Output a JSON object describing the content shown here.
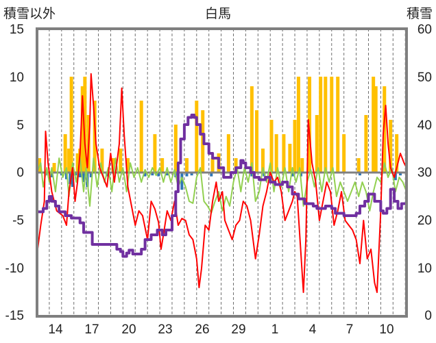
{
  "chart_data": {
    "type": "bar+line",
    "title": "白馬",
    "ylabel_left": "積雪以外",
    "ylabel_right": "積雪",
    "ylim_left": [
      -15,
      15
    ],
    "ylim_right": [
      0,
      60
    ],
    "yticks_left": [
      "15",
      "10",
      "5",
      "0",
      "-5",
      "-10",
      "-15"
    ],
    "yticks_right": [
      "60",
      "50",
      "40",
      "30",
      "20",
      "10",
      "0"
    ],
    "x_tick_labels": [
      "14",
      "17",
      "20",
      "23",
      "26",
      "29",
      "1",
      "4",
      "7",
      "10"
    ],
    "x_tick_positions_days": [
      1,
      4,
      7,
      10,
      13,
      16,
      19,
      22,
      25,
      28
    ],
    "x_range_days": [
      0,
      30.1
    ],
    "colors": {
      "snowfall": "#ffc000",
      "precip": "#2e75b6",
      "temperature": "#ff0000",
      "temp_change": "#92d050",
      "snow_depth": "#7030a0",
      "frame": "#7f7f7f",
      "zero_line": "#808080"
    },
    "series_temperature_left": [
      [
        0,
        -8.5
      ],
      [
        0.3,
        -5.5
      ],
      [
        0.6,
        -3
      ],
      [
        0.7,
        4.3
      ],
      [
        0.9,
        1
      ],
      [
        1.2,
        -2
      ],
      [
        1.6,
        -4
      ],
      [
        2.1,
        -4.5
      ],
      [
        2.4,
        -5.5
      ],
      [
        2.6,
        -2
      ],
      [
        2.9,
        0.5
      ],
      [
        3.1,
        -3
      ],
      [
        3.3,
        -1
      ],
      [
        3.5,
        2
      ],
      [
        3.7,
        8
      ],
      [
        3.9,
        3
      ],
      [
        4.1,
        0.5
      ],
      [
        4.3,
        5
      ],
      [
        4.4,
        10.3
      ],
      [
        4.6,
        7
      ],
      [
        4.8,
        3
      ],
      [
        5.1,
        0.5
      ],
      [
        5.4,
        -0.5
      ],
      [
        5.7,
        -1.5
      ],
      [
        6,
        2
      ],
      [
        6.3,
        -1
      ],
      [
        6.7,
        3
      ],
      [
        6.9,
        8.8
      ],
      [
        7.1,
        4
      ],
      [
        7.4,
        -1.5
      ],
      [
        7.7,
        -3.5
      ],
      [
        8,
        -5.5
      ],
      [
        8.3,
        -4
      ],
      [
        8.6,
        -4.5
      ],
      [
        9,
        -7
      ],
      [
        9.3,
        -3
      ],
      [
        9.6,
        -3.8
      ],
      [
        9.9,
        -5.2
      ],
      [
        10.1,
        -8
      ],
      [
        10.3,
        -6.5
      ],
      [
        10.6,
        -4
      ],
      [
        10.9,
        -5
      ],
      [
        11.2,
        -3
      ],
      [
        11.5,
        -5.5
      ],
      [
        11.8,
        -4.8
      ],
      [
        12.1,
        -5
      ],
      [
        12.4,
        -6.5
      ],
      [
        12.7,
        -7
      ],
      [
        13,
        -9
      ],
      [
        13.2,
        -12
      ],
      [
        13.4,
        -10
      ],
      [
        13.7,
        -5.5
      ],
      [
        14,
        -6
      ],
      [
        14.3,
        -3
      ],
      [
        14.6,
        -1
      ],
      [
        14.8,
        -3
      ],
      [
        15.1,
        -2
      ],
      [
        15.3,
        -5
      ],
      [
        15.6,
        -6
      ],
      [
        15.9,
        -7
      ],
      [
        16.2,
        -5.5
      ],
      [
        16.5,
        -5
      ],
      [
        16.8,
        -3
      ],
      [
        17.1,
        -3.5
      ],
      [
        17.4,
        -5
      ],
      [
        17.8,
        -9
      ],
      [
        18.1,
        -6.5
      ],
      [
        18.4,
        -3.5
      ],
      [
        18.7,
        -2
      ],
      [
        19,
        0
      ],
      [
        19.3,
        -1
      ],
      [
        19.6,
        -0.5
      ],
      [
        19.9,
        -2
      ],
      [
        20.2,
        -5
      ],
      [
        20.5,
        -4
      ],
      [
        20.8,
        -3
      ],
      [
        21,
        -2
      ],
      [
        21.2,
        -2.5
      ],
      [
        21.5,
        -8.5
      ],
      [
        21.7,
        -12.5
      ],
      [
        21.9,
        -7
      ],
      [
        22.1,
        5.5
      ],
      [
        22.4,
        1
      ],
      [
        22.7,
        -1
      ],
      [
        23,
        -5
      ],
      [
        23.3,
        -3
      ],
      [
        23.6,
        -1
      ],
      [
        23.9,
        -2
      ],
      [
        24.2,
        -5.5
      ],
      [
        24.5,
        -4
      ],
      [
        24.8,
        -2
      ],
      [
        25.1,
        -5
      ],
      [
        25.4,
        -5.5
      ],
      [
        25.7,
        -6
      ],
      [
        26,
        -7
      ],
      [
        26.3,
        -9.5
      ],
      [
        26.6,
        -5
      ],
      [
        26.9,
        -9
      ],
      [
        27.2,
        -8
      ],
      [
        27.5,
        -11.5
      ],
      [
        27.7,
        -12.5
      ],
      [
        28,
        -4
      ],
      [
        28.2,
        4
      ],
      [
        28.4,
        7
      ],
      [
        28.6,
        3
      ],
      [
        28.8,
        0.5
      ],
      [
        29.1,
        -0.5
      ],
      [
        29.4,
        1
      ],
      [
        29.6,
        2
      ],
      [
        29.9,
        1
      ],
      [
        30.1,
        0.5
      ]
    ],
    "series_temp_change_left": [
      [
        0,
        0
      ],
      [
        0.3,
        1
      ],
      [
        0.5,
        -1.5
      ],
      [
        0.8,
        0.5
      ],
      [
        1,
        -1
      ],
      [
        1.2,
        0.5
      ],
      [
        1.5,
        -2
      ],
      [
        1.8,
        1.5
      ],
      [
        2.1,
        -0.5
      ],
      [
        2.4,
        0.5
      ],
      [
        2.6,
        -2.5
      ],
      [
        2.9,
        1
      ],
      [
        3.2,
        -1
      ],
      [
        3.5,
        1.5
      ],
      [
        3.8,
        -2
      ],
      [
        4,
        0.5
      ],
      [
        4.3,
        -3.5
      ],
      [
        4.6,
        1.5
      ],
      [
        4.9,
        -1.5
      ],
      [
        5.2,
        1
      ],
      [
        5.5,
        -1
      ],
      [
        5.8,
        0.5
      ],
      [
        6.1,
        -2
      ],
      [
        6.4,
        1.5
      ],
      [
        6.7,
        -1
      ],
      [
        7,
        0.5
      ],
      [
        7.3,
        -2
      ],
      [
        7.6,
        1
      ],
      [
        7.9,
        -0.5
      ],
      [
        8.2,
        0.5
      ],
      [
        8.5,
        -1
      ],
      [
        8.8,
        0.3
      ],
      [
        9.1,
        -0.5
      ],
      [
        9.4,
        0.5
      ],
      [
        9.7,
        -0.3
      ],
      [
        10,
        0.5
      ],
      [
        10.3,
        -1
      ],
      [
        10.6,
        0.5
      ],
      [
        10.9,
        -1
      ],
      [
        11.2,
        0.3
      ],
      [
        11.5,
        -1.5
      ],
      [
        11.8,
        -0.5
      ],
      [
        12.1,
        -1.5
      ],
      [
        12.4,
        -3
      ],
      [
        12.7,
        -3.2
      ],
      [
        13,
        -0.5
      ],
      [
        13.3,
        0.5
      ],
      [
        13.6,
        -3
      ],
      [
        13.9,
        -3.5
      ],
      [
        14.2,
        -4.2
      ],
      [
        14.5,
        -3
      ],
      [
        14.8,
        -2
      ],
      [
        15.1,
        -4
      ],
      [
        15.4,
        -2.5
      ],
      [
        15.7,
        -3.5
      ],
      [
        16,
        -1
      ],
      [
        16.3,
        0.5
      ],
      [
        16.6,
        -2
      ],
      [
        16.9,
        0.5
      ],
      [
        17.2,
        -1
      ],
      [
        17.5,
        1
      ],
      [
        17.8,
        -3
      ],
      [
        18.1,
        -2
      ],
      [
        18.4,
        0.5
      ],
      [
        18.7,
        -1
      ],
      [
        19,
        1
      ],
      [
        19.3,
        -2
      ],
      [
        19.6,
        0.5
      ],
      [
        19.9,
        -1.5
      ],
      [
        20.2,
        0.5
      ],
      [
        20.5,
        -2
      ],
      [
        20.8,
        0.5
      ],
      [
        21.1,
        -1
      ],
      [
        21.4,
        0.5
      ],
      [
        21.7,
        -3.5
      ],
      [
        22,
        -1
      ],
      [
        22.3,
        0.3
      ],
      [
        22.6,
        -1.5
      ],
      [
        22.9,
        0.5
      ],
      [
        23.2,
        -2
      ],
      [
        23.5,
        0.5
      ],
      [
        23.8,
        -1
      ],
      [
        24.1,
        0.5
      ],
      [
        24.4,
        -2.5
      ],
      [
        24.7,
        -1
      ],
      [
        25,
        -2
      ],
      [
        25.3,
        -3
      ],
      [
        25.6,
        -2
      ],
      [
        25.9,
        -1
      ],
      [
        26.2,
        -2.5
      ],
      [
        26.5,
        -1
      ],
      [
        26.8,
        -2
      ],
      [
        27.1,
        -4
      ],
      [
        27.4,
        -2
      ],
      [
        27.7,
        -0.5
      ],
      [
        28,
        -1
      ],
      [
        28.3,
        1
      ],
      [
        28.6,
        -0.5
      ],
      [
        28.9,
        0.5
      ],
      [
        29.2,
        -2
      ],
      [
        29.5,
        -0.5
      ],
      [
        29.8,
        -1
      ],
      [
        30.1,
        -2
      ]
    ],
    "series_snow_depth_right": [
      [
        0,
        21.8
      ],
      [
        0.5,
        21.8
      ],
      [
        0.5,
        22.5
      ],
      [
        0.8,
        22.5
      ],
      [
        0.8,
        24
      ],
      [
        1,
        24
      ],
      [
        1,
        25
      ],
      [
        1.2,
        25
      ],
      [
        1.2,
        24
      ],
      [
        1.5,
        24
      ],
      [
        1.5,
        23
      ],
      [
        1.8,
        23
      ],
      [
        1.8,
        21.8
      ],
      [
        2.3,
        21.8
      ],
      [
        2.3,
        21
      ],
      [
        2.8,
        21
      ],
      [
        2.8,
        20.5
      ],
      [
        3.5,
        20.5
      ],
      [
        3.5,
        19.5
      ],
      [
        3.8,
        19.5
      ],
      [
        3.8,
        17.5
      ],
      [
        4.5,
        17.5
      ],
      [
        4.5,
        15
      ],
      [
        6.5,
        15
      ],
      [
        6.5,
        14
      ],
      [
        6.8,
        14
      ],
      [
        6.8,
        13.5
      ],
      [
        7,
        13.5
      ],
      [
        7,
        12.5
      ],
      [
        7.3,
        12.5
      ],
      [
        7.3,
        13.2
      ],
      [
        7.5,
        13.2
      ],
      [
        7.5,
        13.8
      ],
      [
        7.8,
        13.8
      ],
      [
        7.8,
        13
      ],
      [
        8.5,
        13
      ],
      [
        8.5,
        14
      ],
      [
        8.8,
        14
      ],
      [
        8.8,
        16
      ],
      [
        9.3,
        16
      ],
      [
        9.3,
        17
      ],
      [
        9.8,
        17
      ],
      [
        9.8,
        18
      ],
      [
        10.2,
        18
      ],
      [
        10.2,
        17
      ],
      [
        10.5,
        17
      ],
      [
        10.5,
        18
      ],
      [
        11,
        18
      ],
      [
        11,
        21
      ],
      [
        11.3,
        21
      ],
      [
        11.3,
        26
      ],
      [
        11.5,
        26
      ],
      [
        11.5,
        32
      ],
      [
        11.7,
        32
      ],
      [
        11.7,
        37
      ],
      [
        12,
        37
      ],
      [
        12,
        40
      ],
      [
        12.3,
        40
      ],
      [
        12.3,
        41.5
      ],
      [
        12.6,
        41.5
      ],
      [
        12.6,
        42
      ],
      [
        12.8,
        42
      ],
      [
        12.8,
        41.5
      ],
      [
        13,
        41.5
      ],
      [
        13,
        40
      ],
      [
        13.3,
        40
      ],
      [
        13.3,
        38
      ],
      [
        13.6,
        38
      ],
      [
        13.6,
        36
      ],
      [
        14,
        36
      ],
      [
        14,
        34
      ],
      [
        14.3,
        34
      ],
      [
        14.3,
        33
      ],
      [
        14.8,
        33
      ],
      [
        14.8,
        31
      ],
      [
        15.2,
        31
      ],
      [
        15.2,
        29
      ],
      [
        15.8,
        29
      ],
      [
        15.8,
        30
      ],
      [
        16.2,
        30
      ],
      [
        16.2,
        31
      ],
      [
        16.6,
        31
      ],
      [
        16.6,
        32.5
      ],
      [
        16.8,
        32.5
      ],
      [
        16.8,
        32
      ],
      [
        17,
        32
      ],
      [
        17,
        31
      ],
      [
        17.4,
        31
      ],
      [
        17.4,
        30
      ],
      [
        17.7,
        30
      ],
      [
        17.7,
        29
      ],
      [
        18.1,
        29
      ],
      [
        18.1,
        28.5
      ],
      [
        18.6,
        28.5
      ],
      [
        18.6,
        29
      ],
      [
        19,
        29
      ],
      [
        19,
        28
      ],
      [
        19.4,
        28
      ],
      [
        19.4,
        27.5
      ],
      [
        20,
        27.5
      ],
      [
        20,
        28
      ],
      [
        20.4,
        28
      ],
      [
        20.4,
        27
      ],
      [
        20.8,
        27
      ],
      [
        20.8,
        25.5
      ],
      [
        21.3,
        25.5
      ],
      [
        21.3,
        24.5
      ],
      [
        21.8,
        24.5
      ],
      [
        21.8,
        23.5
      ],
      [
        22.5,
        23.5
      ],
      [
        22.5,
        23
      ],
      [
        22.8,
        23
      ],
      [
        22.8,
        22.5
      ],
      [
        23.5,
        22.5
      ],
      [
        23.5,
        23
      ],
      [
        24,
        23
      ],
      [
        24,
        22.5
      ],
      [
        24.3,
        22.5
      ],
      [
        24.3,
        21.5
      ],
      [
        25,
        21.5
      ],
      [
        25,
        21
      ],
      [
        26,
        21
      ],
      [
        26,
        21.5
      ],
      [
        26.3,
        21.5
      ],
      [
        26.3,
        23
      ],
      [
        26.7,
        23
      ],
      [
        26.7,
        24
      ],
      [
        27,
        24
      ],
      [
        27,
        25.5
      ],
      [
        27.5,
        25.5
      ],
      [
        27.5,
        24
      ],
      [
        28,
        24
      ],
      [
        28,
        22
      ],
      [
        28.2,
        22
      ],
      [
        28.2,
        21.5
      ],
      [
        28.5,
        21.5
      ],
      [
        28.5,
        22.5
      ],
      [
        28.8,
        22.5
      ],
      [
        28.8,
        26.5
      ],
      [
        29.1,
        26.5
      ],
      [
        29.1,
        24
      ],
      [
        29.4,
        24
      ],
      [
        29.4,
        22.5
      ],
      [
        29.7,
        22.5
      ],
      [
        29.7,
        23.5
      ],
      [
        30.1,
        23.5
      ]
    ],
    "bars_snowfall_right": [
      [
        0.2,
        33
      ],
      [
        1.4,
        32
      ],
      [
        2.3,
        38
      ],
      [
        2.6,
        35
      ],
      [
        2.8,
        50
      ],
      [
        3.3,
        34
      ],
      [
        3.5,
        35
      ],
      [
        3.7,
        48
      ],
      [
        3.9,
        50
      ],
      [
        4.2,
        42
      ],
      [
        4.7,
        45
      ],
      [
        5.3,
        35
      ],
      [
        6.2,
        33
      ],
      [
        6.8,
        35
      ],
      [
        7.4,
        33
      ],
      [
        8.5,
        45
      ],
      [
        9.6,
        38
      ],
      [
        10.2,
        33
      ],
      [
        11.3,
        40
      ],
      [
        12.2,
        33
      ],
      [
        13,
        45
      ],
      [
        13.5,
        43
      ],
      [
        14.3,
        33
      ],
      [
        14.8,
        34
      ],
      [
        15.6,
        38
      ],
      [
        16.2,
        33
      ],
      [
        17.5,
        48
      ],
      [
        17.9,
        43
      ],
      [
        18.4,
        35
      ],
      [
        19.1,
        41
      ],
      [
        19.5,
        38
      ],
      [
        20.1,
        38
      ],
      [
        20.6,
        36
      ],
      [
        21,
        41
      ],
      [
        21.3,
        50
      ],
      [
        21.6,
        33
      ],
      [
        22.2,
        50
      ],
      [
        22.8,
        42
      ],
      [
        23.1,
        50
      ],
      [
        23.5,
        50
      ],
      [
        24,
        50
      ],
      [
        24.5,
        50
      ],
      [
        25,
        38
      ],
      [
        26.2,
        33
      ],
      [
        26.8,
        42
      ],
      [
        27.4,
        50
      ],
      [
        27.6,
        48
      ],
      [
        28.3,
        48
      ],
      [
        28.8,
        41
      ],
      [
        29.3,
        38
      ]
    ],
    "bars_precip_left": [
      [
        0.7,
        -0.3
      ],
      [
        1.2,
        -0.5
      ],
      [
        2,
        -0.3
      ],
      [
        2.4,
        -0.7
      ],
      [
        2.7,
        -1.2
      ],
      [
        2.9,
        -1.5
      ],
      [
        3.2,
        -0.3
      ],
      [
        3.5,
        -0.5
      ],
      [
        3.8,
        -1
      ],
      [
        4.1,
        -1.5
      ],
      [
        4.4,
        -0.5
      ],
      [
        5.7,
        -0.4
      ],
      [
        8.8,
        -0.4
      ],
      [
        9.4,
        -0.3
      ],
      [
        9.9,
        -0.4
      ],
      [
        10.6,
        -0.3
      ],
      [
        11.3,
        -0.5
      ],
      [
        11.5,
        -0.8
      ],
      [
        11.8,
        -1.8
      ],
      [
        12.2,
        -0.4
      ],
      [
        12.6,
        -0.3
      ],
      [
        14.2,
        -0.4
      ],
      [
        17.5,
        -0.4
      ],
      [
        18.5,
        -0.4
      ],
      [
        20.8,
        -0.4
      ],
      [
        21.5,
        -0.4
      ],
      [
        26.3,
        -0.3
      ],
      [
        29.2,
        -0.8
      ],
      [
        29.6,
        -0.3
      ]
    ]
  }
}
